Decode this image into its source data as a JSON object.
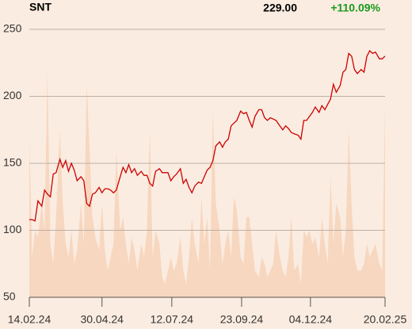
{
  "chart_data": {
    "type": "line",
    "symbol": "SNT",
    "last_price": "229.00",
    "change": "+110.09%",
    "change_color": "#1a9a1a",
    "xlim": [
      0,
      372
    ],
    "xticks": [
      {
        "value": 0,
        "label": "14.02.24"
      },
      {
        "value": 76,
        "label": "30.04.24"
      },
      {
        "value": 149,
        "label": "12.07.24"
      },
      {
        "value": 222,
        "label": "23.09.24"
      },
      {
        "value": 294,
        "label": "04.12.24"
      },
      {
        "value": 372,
        "label": "20.02.25"
      }
    ],
    "ylim": [
      50,
      250
    ],
    "yticks": [
      50,
      100,
      150,
      200,
      250
    ],
    "grid": true,
    "x": [
      0,
      3,
      6,
      9,
      13,
      16,
      19,
      22,
      25,
      28,
      32,
      35,
      38,
      41,
      44,
      47,
      50,
      54,
      57,
      60,
      63,
      66,
      69,
      73,
      76,
      79,
      82,
      85,
      88,
      91,
      95,
      98,
      101,
      104,
      107,
      110,
      113,
      117,
      120,
      123,
      126,
      129,
      132,
      136,
      139,
      142,
      145,
      148,
      151,
      154,
      158,
      161,
      164,
      167,
      170,
      173,
      177,
      180,
      183,
      186,
      189,
      192,
      195,
      199,
      202,
      205,
      208,
      211,
      214,
      217,
      221,
      224,
      227,
      230,
      233,
      236,
      240,
      243,
      246,
      249,
      252,
      255,
      258,
      262,
      265,
      268,
      271,
      274,
      277,
      281,
      284,
      287,
      290,
      293,
      296,
      299,
      303,
      306,
      309,
      312,
      315,
      318,
      321,
      325,
      328,
      331,
      334,
      337,
      340,
      343,
      347,
      350,
      353,
      356,
      359,
      362,
      366,
      369,
      372
    ],
    "series": [
      {
        "name": "SNT",
        "color": "#cc0000",
        "values": [
          108,
          108,
          107,
          122,
          118,
          130,
          127,
          125,
          142,
          143,
          153,
          147,
          152,
          144,
          150,
          145,
          137,
          140,
          137,
          120,
          118,
          127,
          128,
          132,
          128,
          131,
          131,
          130,
          128,
          130,
          140,
          147,
          143,
          149,
          143,
          146,
          141,
          144,
          141,
          141,
          135,
          133,
          144,
          146,
          143,
          143,
          143,
          137,
          140,
          142,
          146,
          135,
          138,
          132,
          128,
          133,
          136,
          135,
          140,
          145,
          147,
          152,
          163,
          166,
          162,
          166,
          168,
          178,
          180,
          182,
          189,
          187,
          188,
          182,
          177,
          185,
          190,
          190,
          184,
          182,
          184,
          183,
          182,
          178,
          175,
          178,
          176,
          173,
          172,
          171,
          168,
          182,
          182,
          185,
          188,
          192,
          188,
          193,
          190,
          194,
          198,
          209,
          203,
          208,
          218,
          220,
          232,
          230,
          220,
          217,
          220,
          218,
          230,
          234,
          232,
          233,
          228,
          228,
          230
        ]
      },
      {
        "name": "volume",
        "color": "#f7d7bf",
        "values": [
          170,
          80,
          100,
          95,
          120,
          100,
          220,
          90,
          75,
          110,
          175,
          120,
          90,
          80,
          100,
          75,
          85,
          120,
          90,
          210,
          160,
          110,
          95,
          85,
          120,
          85,
          70,
          80,
          90,
          160,
          100,
          110,
          90,
          75,
          95,
          85,
          70,
          90,
          80,
          100,
          175,
          80,
          100,
          90,
          65,
          60,
          70,
          80,
          70,
          75,
          95,
          70,
          60,
          80,
          110,
          90,
          75,
          125,
          90,
          110,
          70,
          190,
          120,
          100,
          75,
          90,
          100,
          80,
          125,
          115,
          80,
          75,
          110,
          110,
          90,
          70,
          65,
          80,
          75,
          65,
          70,
          75,
          100,
          80,
          70,
          65,
          80,
          110,
          70,
          75,
          60,
          100,
          95,
          100,
          90,
          95,
          80,
          110,
          90,
          75,
          140,
          90,
          120,
          110,
          80,
          100,
          175,
          120,
          80,
          70,
          70,
          75,
          90,
          80,
          85,
          90,
          75,
          70,
          195
        ]
      }
    ]
  }
}
